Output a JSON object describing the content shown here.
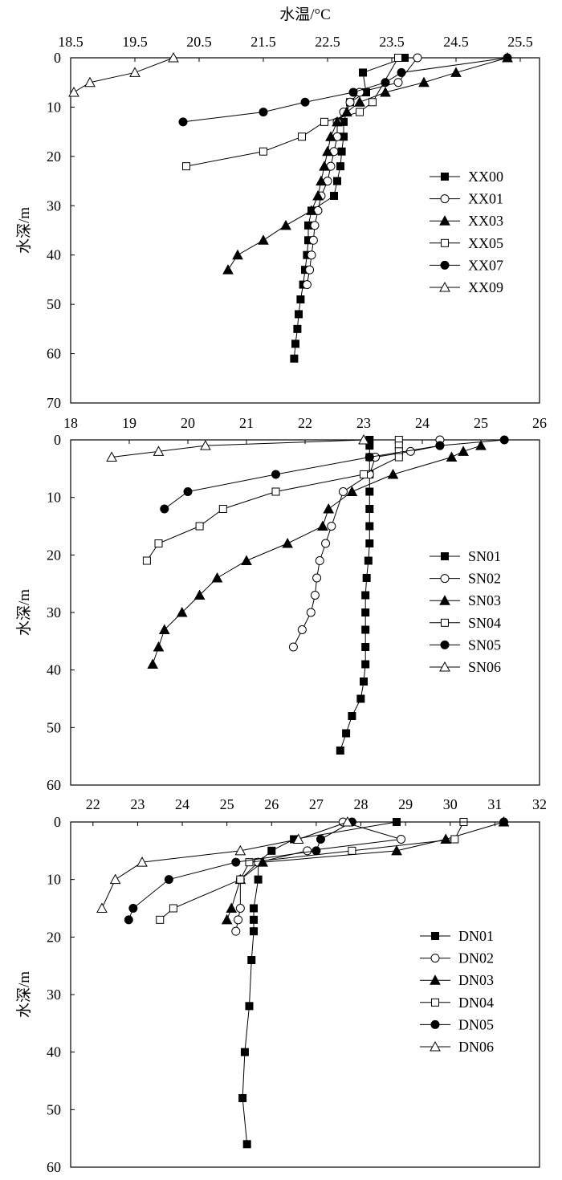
{
  "chart_data": [
    {
      "type": "line",
      "title": "水温/°C",
      "xlabel": "水温/°C",
      "ylabel": "水深/m",
      "xlim": [
        18.5,
        25.8
      ],
      "ylim": [
        0,
        70
      ],
      "y_inverted": true,
      "x_ticks": [
        "18.5",
        "19.5",
        "20.5",
        "21.5",
        "22.5",
        "23.5",
        "24.5",
        "25.5"
      ],
      "y_ticks": [
        "0",
        "10",
        "20",
        "30",
        "40",
        "50",
        "60",
        "70"
      ],
      "legend_position": "right",
      "series": [
        {
          "name": "XX00",
          "marker": "square-filled",
          "points": [
            [
              23.7,
              0
            ],
            [
              23.05,
              3
            ],
            [
              23.1,
              7
            ],
            [
              22.85,
              9
            ],
            [
              22.75,
              13
            ],
            [
              22.75,
              16
            ],
            [
              22.72,
              19
            ],
            [
              22.7,
              22
            ],
            [
              22.65,
              25
            ],
            [
              22.6,
              28
            ],
            [
              22.25,
              31
            ],
            [
              22.2,
              34
            ],
            [
              22.2,
              37
            ],
            [
              22.18,
              40
            ],
            [
              22.15,
              43
            ],
            [
              22.12,
              46
            ],
            [
              22.08,
              49
            ],
            [
              22.05,
              52
            ],
            [
              22.03,
              55
            ],
            [
              22.0,
              58
            ],
            [
              21.98,
              61
            ]
          ]
        },
        {
          "name": "XX01",
          "marker": "circle-open",
          "points": [
            [
              23.9,
              0
            ],
            [
              23.6,
              5
            ],
            [
              23.0,
              7
            ],
            [
              22.85,
              9
            ],
            [
              22.75,
              11
            ],
            [
              22.65,
              13
            ],
            [
              22.65,
              16
            ],
            [
              22.6,
              19
            ],
            [
              22.55,
              22
            ],
            [
              22.5,
              25
            ],
            [
              22.4,
              28
            ],
            [
              22.35,
              31
            ],
            [
              22.3,
              34
            ],
            [
              22.28,
              37
            ],
            [
              22.25,
              40
            ],
            [
              22.22,
              43
            ],
            [
              22.18,
              46
            ]
          ]
        },
        {
          "name": "XX03",
          "marker": "triangle-filled",
          "points": [
            [
              25.3,
              0
            ],
            [
              24.5,
              3
            ],
            [
              24.0,
              5
            ],
            [
              23.4,
              7
            ],
            [
              23.0,
              9
            ],
            [
              22.8,
              11
            ],
            [
              22.65,
              13
            ],
            [
              22.55,
              16
            ],
            [
              22.5,
              19
            ],
            [
              22.45,
              22
            ],
            [
              22.4,
              25
            ],
            [
              22.35,
              28
            ],
            [
              22.25,
              31
            ],
            [
              21.85,
              34
            ],
            [
              21.5,
              37
            ],
            [
              21.1,
              40
            ],
            [
              20.95,
              43
            ]
          ]
        },
        {
          "name": "XX05",
          "marker": "square-open",
          "points": [
            [
              23.6,
              0
            ],
            [
              23.2,
              9
            ],
            [
              23.0,
              11
            ],
            [
              22.45,
              13
            ],
            [
              22.1,
              16
            ],
            [
              21.5,
              19
            ],
            [
              20.3,
              22
            ]
          ]
        },
        {
          "name": "XX07",
          "marker": "circle-filled",
          "points": [
            [
              25.3,
              0
            ],
            [
              23.65,
              3
            ],
            [
              23.4,
              5
            ],
            [
              22.9,
              7
            ],
            [
              22.15,
              9
            ],
            [
              21.5,
              11
            ],
            [
              20.25,
              13
            ]
          ]
        },
        {
          "name": "XX09",
          "marker": "triangle-open",
          "points": [
            [
              20.1,
              0
            ],
            [
              19.5,
              3
            ],
            [
              18.8,
              5
            ],
            [
              18.55,
              7
            ]
          ]
        }
      ]
    },
    {
      "type": "line",
      "xlabel": "",
      "ylabel": "水深/m",
      "xlim": [
        18,
        26
      ],
      "ylim": [
        0,
        60
      ],
      "y_inverted": true,
      "x_ticks": [
        "18",
        "19",
        "20",
        "21",
        "22",
        "23",
        "24",
        "25",
        "26"
      ],
      "y_ticks": [
        "0",
        "10",
        "20",
        "30",
        "40",
        "50",
        "60"
      ],
      "legend_position": "right",
      "series": [
        {
          "name": "SN01",
          "marker": "square-filled",
          "points": [
            [
              23.1,
              0
            ],
            [
              23.1,
              1
            ],
            [
              23.1,
              3
            ],
            [
              23.1,
              6
            ],
            [
              23.1,
              9
            ],
            [
              23.1,
              12
            ],
            [
              23.1,
              15
            ],
            [
              23.1,
              18
            ],
            [
              23.08,
              21
            ],
            [
              23.05,
              24
            ],
            [
              23.03,
              27
            ],
            [
              23.03,
              30
            ],
            [
              23.03,
              33
            ],
            [
              23.03,
              36
            ],
            [
              23.03,
              39
            ],
            [
              23.0,
              42
            ],
            [
              22.95,
              45
            ],
            [
              22.8,
              48
            ],
            [
              22.7,
              51
            ],
            [
              22.6,
              54
            ]
          ]
        },
        {
          "name": "SN02",
          "marker": "circle-open",
          "points": [
            [
              24.3,
              0
            ],
            [
              24.3,
              1
            ],
            [
              23.8,
              2
            ],
            [
              23.2,
              3
            ],
            [
              23.1,
              6
            ],
            [
              22.65,
              9
            ],
            [
              22.45,
              15
            ],
            [
              22.35,
              18
            ],
            [
              22.25,
              21
            ],
            [
              22.2,
              24
            ],
            [
              22.17,
              27
            ],
            [
              22.1,
              30
            ],
            [
              21.95,
              33
            ],
            [
              21.8,
              36
            ]
          ]
        },
        {
          "name": "SN03",
          "marker": "triangle-filled",
          "points": [
            [
              25.0,
              1
            ],
            [
              24.7,
              2
            ],
            [
              24.5,
              3
            ],
            [
              23.5,
              6
            ],
            [
              22.8,
              9
            ],
            [
              22.4,
              12
            ],
            [
              22.3,
              15
            ],
            [
              21.7,
              18
            ],
            [
              21.0,
              21
            ],
            [
              20.5,
              24
            ],
            [
              20.2,
              27
            ],
            [
              19.9,
              30
            ],
            [
              19.6,
              33
            ],
            [
              19.5,
              36
            ],
            [
              19.4,
              39
            ]
          ]
        },
        {
          "name": "SN04",
          "marker": "square-open",
          "points": [
            [
              23.6,
              0
            ],
            [
              23.6,
              1
            ],
            [
              23.6,
              2
            ],
            [
              23.6,
              3
            ],
            [
              23.0,
              6
            ],
            [
              21.5,
              9
            ],
            [
              20.6,
              12
            ],
            [
              20.2,
              15
            ],
            [
              19.5,
              18
            ],
            [
              19.3,
              21
            ]
          ]
        },
        {
          "name": "SN05",
          "marker": "circle-filled",
          "points": [
            [
              25.4,
              0
            ],
            [
              24.3,
              1
            ],
            [
              23.1,
              3
            ],
            [
              21.5,
              6
            ],
            [
              20.0,
              9
            ],
            [
              19.6,
              12
            ]
          ]
        },
        {
          "name": "SN06",
          "marker": "triangle-open",
          "points": [
            [
              23.0,
              0
            ],
            [
              20.3,
              1
            ],
            [
              19.5,
              2
            ],
            [
              18.7,
              3
            ]
          ]
        }
      ]
    },
    {
      "type": "line",
      "xlabel": "",
      "ylabel": "水深/m",
      "xlim": [
        21.5,
        32
      ],
      "ylim": [
        0,
        60
      ],
      "y_inverted": true,
      "x_ticks": [
        "22",
        "23",
        "24",
        "25",
        "26",
        "27",
        "28",
        "29",
        "30",
        "31",
        "32"
      ],
      "y_ticks": [
        "0",
        "10",
        "20",
        "30",
        "40",
        "50",
        "60"
      ],
      "legend_position": "right",
      "series": [
        {
          "name": "DN01",
          "marker": "square-filled",
          "points": [
            [
              28.8,
              0
            ],
            [
              26.5,
              3
            ],
            [
              26.0,
              5
            ],
            [
              25.7,
              7
            ],
            [
              25.7,
              10
            ],
            [
              25.6,
              15
            ],
            [
              25.6,
              17
            ],
            [
              25.6,
              19
            ],
            [
              25.55,
              24
            ],
            [
              25.5,
              32
            ],
            [
              25.4,
              40
            ],
            [
              25.35,
              48
            ],
            [
              25.45,
              56
            ]
          ]
        },
        {
          "name": "DN02",
          "marker": "circle-open",
          "points": [
            [
              27.6,
              0
            ],
            [
              28.9,
              3
            ],
            [
              26.8,
              5
            ],
            [
              25.7,
              7
            ],
            [
              25.3,
              10
            ],
            [
              25.3,
              15
            ],
            [
              25.25,
              17
            ],
            [
              25.2,
              19
            ]
          ]
        },
        {
          "name": "DN03",
          "marker": "triangle-filled",
          "points": [
            [
              31.2,
              0
            ],
            [
              29.9,
              3
            ],
            [
              28.8,
              5
            ],
            [
              25.8,
              7
            ],
            [
              25.3,
              10
            ],
            [
              25.1,
              15
            ],
            [
              25.0,
              17
            ]
          ]
        },
        {
          "name": "DN04",
          "marker": "square-open",
          "points": [
            [
              30.3,
              0
            ],
            [
              30.1,
              3
            ],
            [
              27.8,
              5
            ],
            [
              25.5,
              7
            ],
            [
              25.3,
              10
            ],
            [
              23.8,
              15
            ],
            [
              23.5,
              17
            ]
          ]
        },
        {
          "name": "DN05",
          "marker": "circle-filled",
          "points": [
            [
              31.2,
              0
            ],
            [
              27.8,
              0
            ],
            [
              27.1,
              3
            ],
            [
              27.0,
              5
            ],
            [
              25.2,
              7
            ],
            [
              23.7,
              10
            ],
            [
              22.9,
              15
            ],
            [
              22.8,
              17
            ]
          ]
        },
        {
          "name": "DN06",
          "marker": "triangle-open",
          "points": [
            [
              27.7,
              0
            ],
            [
              26.6,
              3
            ],
            [
              25.3,
              5
            ],
            [
              23.1,
              7
            ],
            [
              22.5,
              10
            ],
            [
              22.2,
              15
            ]
          ]
        }
      ]
    }
  ]
}
